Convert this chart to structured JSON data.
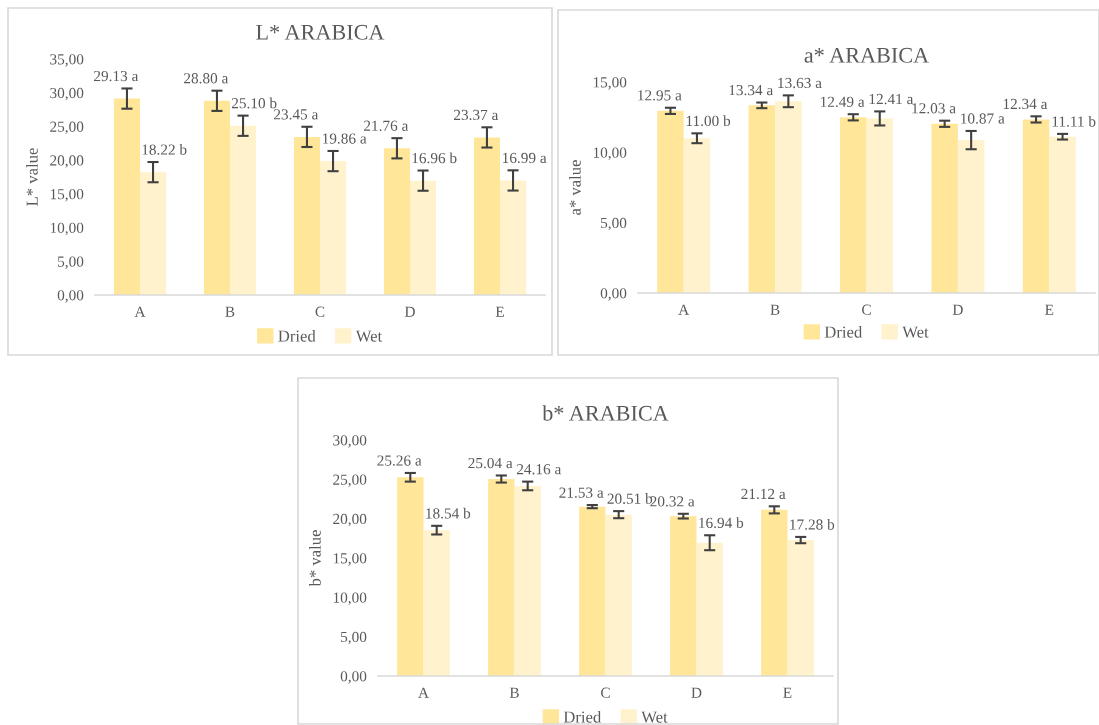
{
  "chart_data": [
    {
      "type": "bar",
      "title": "L* ARABICA",
      "ylabel": "L* value",
      "categories": [
        "A",
        "B",
        "C",
        "D",
        "E"
      ],
      "series": [
        {
          "name": "Dried",
          "color": "#ffe699",
          "values": [
            29.13,
            28.8,
            23.45,
            21.76,
            23.37
          ],
          "errors": [
            1.5,
            1.5,
            1.5,
            1.5,
            1.5
          ],
          "value_labels": [
            "29.13 a",
            "28.80 a",
            "23.45 a",
            "21.76 a",
            "23.37 a"
          ]
        },
        {
          "name": "Wet",
          "color": "#fff2cc",
          "values": [
            18.22,
            25.1,
            19.86,
            16.96,
            16.99
          ],
          "errors": [
            1.5,
            1.5,
            1.5,
            1.5,
            1.5
          ],
          "value_labels": [
            "18.22 b",
            "25.10 b",
            "19.86 a",
            "16.96 b",
            "16.99 a"
          ]
        }
      ],
      "ylim": [
        0,
        35
      ],
      "yticks": [
        {
          "value": 0,
          "label": "0,00"
        },
        {
          "value": 5,
          "label": "5,00"
        },
        {
          "value": 10,
          "label": "10,00"
        },
        {
          "value": 15,
          "label": "15,00"
        },
        {
          "value": 20,
          "label": "20,00"
        },
        {
          "value": 25,
          "label": "25,00"
        },
        {
          "value": 30,
          "label": "30,00"
        },
        {
          "value": 35,
          "label": "35,00"
        }
      ],
      "grid": false,
      "legend": "bottom"
    },
    {
      "type": "bar",
      "title": "a* ARABICA",
      "ylabel": "a* value",
      "categories": [
        "A",
        "B",
        "C",
        "D",
        "E"
      ],
      "series": [
        {
          "name": "Dried",
          "color": "#ffe699",
          "values": [
            12.95,
            13.34,
            12.49,
            12.03,
            12.34
          ],
          "errors": [
            0.22,
            0.2,
            0.22,
            0.22,
            0.22
          ],
          "value_labels": [
            "12.95 a",
            "13.34 a",
            "12.49 a",
            "12.03 a",
            "12.34 a"
          ]
        },
        {
          "name": "Wet",
          "color": "#fff2cc",
          "values": [
            11.0,
            13.63,
            12.41,
            10.87,
            11.11
          ],
          "errors": [
            0.35,
            0.42,
            0.5,
            0.65,
            0.2
          ],
          "value_labels": [
            "11.00 b",
            "13.63 a",
            "12.41 a",
            "10.87 a",
            "11.11 b"
          ]
        }
      ],
      "ylim": [
        0,
        15
      ],
      "yticks": [
        {
          "value": 0,
          "label": "0,00"
        },
        {
          "value": 5,
          "label": "5,00"
        },
        {
          "value": 10,
          "label": "10,00"
        },
        {
          "value": 15,
          "label": "15,00"
        }
      ],
      "grid": false,
      "legend": "bottom"
    },
    {
      "type": "bar",
      "title": "b* ARABICA",
      "ylabel": "b* value",
      "categories": [
        "A",
        "B",
        "C",
        "D",
        "E"
      ],
      "series": [
        {
          "name": "Dried",
          "color": "#ffe699",
          "values": [
            25.26,
            25.04,
            21.53,
            20.32,
            21.12
          ],
          "errors": [
            0.55,
            0.45,
            0.2,
            0.3,
            0.45
          ],
          "value_labels": [
            "25.26 a",
            "25.04 a",
            "21.53 a",
            "20.32 a",
            "21.12 a"
          ]
        },
        {
          "name": "Wet",
          "color": "#fff2cc",
          "values": [
            18.54,
            24.16,
            20.51,
            16.94,
            17.28
          ],
          "errors": [
            0.55,
            0.55,
            0.45,
            0.95,
            0.4
          ],
          "value_labels": [
            "18.54 b",
            "24.16 a",
            "20.51 b",
            "16.94 b",
            "17.28 b"
          ]
        }
      ],
      "ylim": [
        0,
        30
      ],
      "yticks": [
        {
          "value": 0,
          "label": "0,00"
        },
        {
          "value": 5,
          "label": "5,00"
        },
        {
          "value": 10,
          "label": "10,00"
        },
        {
          "value": 15,
          "label": "15,00"
        },
        {
          "value": 20,
          "label": "20,00"
        },
        {
          "value": 25,
          "label": "25,00"
        },
        {
          "value": 30,
          "label": "30,00"
        }
      ],
      "grid": false,
      "legend": "bottom"
    }
  ]
}
